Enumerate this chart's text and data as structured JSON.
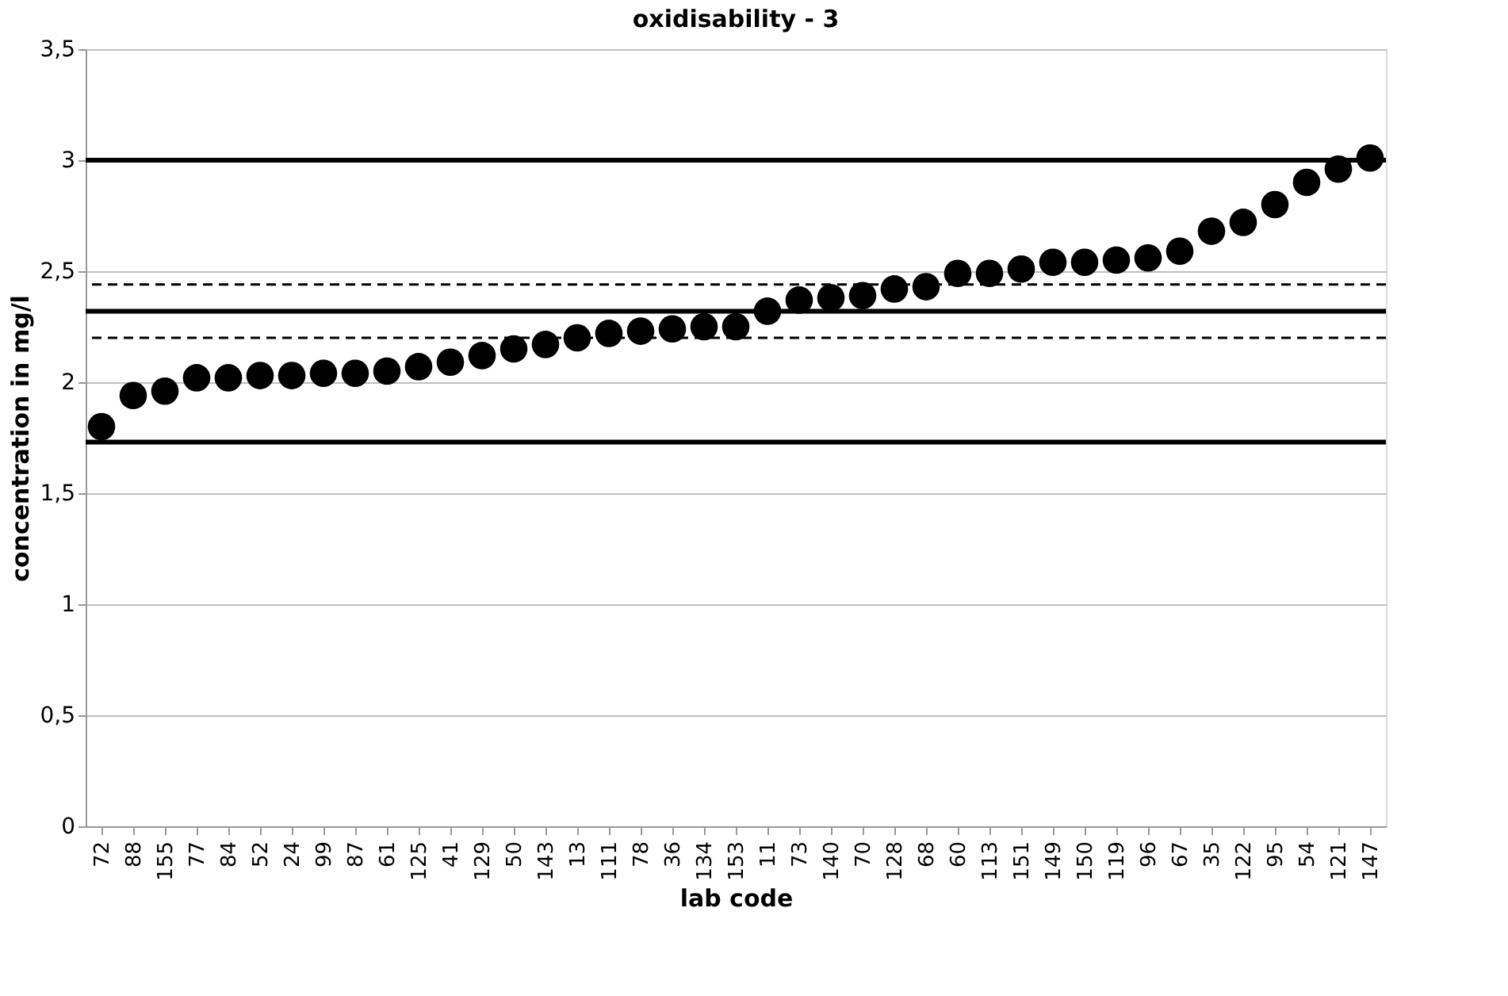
{
  "chart_data": {
    "type": "scatter",
    "title": "oxidisability - 3",
    "xlabel": "lab code",
    "ylabel": "concentration in mg/l",
    "categories": [
      "72",
      "88",
      "155",
      "77",
      "84",
      "52",
      "24",
      "99",
      "87",
      "61",
      "125",
      "41",
      "129",
      "50",
      "143",
      "13",
      "111",
      "78",
      "36",
      "134",
      "153",
      "11",
      "73",
      "140",
      "70",
      "128",
      "68",
      "60",
      "113",
      "151",
      "149",
      "150",
      "119",
      "96",
      "67",
      "35",
      "122",
      "95",
      "54",
      "121",
      "147"
    ],
    "series": [
      {
        "color": "#000000",
        "values": [
          1.8,
          1.94,
          1.96,
          2.02,
          2.02,
          2.03,
          2.03,
          2.04,
          2.04,
          2.05,
          2.07,
          2.09,
          2.12,
          2.15,
          2.17,
          2.2,
          2.22,
          2.23,
          2.24,
          2.25,
          2.25,
          2.32,
          2.37,
          2.38,
          2.39,
          2.42,
          2.43,
          2.49,
          2.49,
          2.51,
          2.54,
          2.54,
          2.55,
          2.56,
          2.59,
          2.68,
          2.72,
          2.8,
          2.9,
          2.96,
          3.01
        ]
      }
    ],
    "ylim": [
      0,
      3.5
    ],
    "yticks": [
      {
        "value": 0,
        "label": "0"
      },
      {
        "value": 0.5,
        "label": "0,5"
      },
      {
        "value": 1,
        "label": "1"
      },
      {
        "value": 1.5,
        "label": "1,5"
      },
      {
        "value": 2,
        "label": "2"
      },
      {
        "value": 2.5,
        "label": "2,5"
      },
      {
        "value": 3,
        "label": "3"
      },
      {
        "value": 3.5,
        "label": "3,5"
      }
    ],
    "ref_lines": [
      {
        "axis": "y",
        "value": 3.0,
        "color": "#000000",
        "line_style": "solid"
      },
      {
        "axis": "y",
        "value": 2.44,
        "color": "#000000",
        "line_style": "dashed"
      },
      {
        "axis": "y",
        "value": 2.32,
        "color": "#000000",
        "line_style": "solid"
      },
      {
        "axis": "y",
        "value": 2.2,
        "color": "#000000",
        "line_style": "dashed"
      },
      {
        "axis": "y",
        "value": 1.73,
        "color": "#000000",
        "line_style": "solid"
      }
    ],
    "grid": "y",
    "marker": "circle"
  }
}
